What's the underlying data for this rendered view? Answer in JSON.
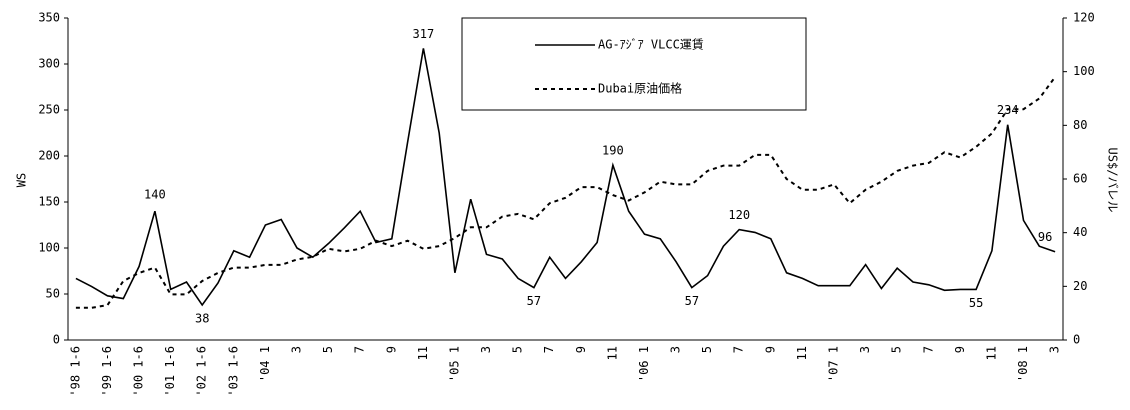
{
  "chart_data": {
    "type": "line",
    "categories": [
      "'98 1-6",
      null,
      "'99 1-6",
      null,
      "'00 1-6",
      null,
      "'01 1-6",
      null,
      "'02 1-6",
      null,
      "'03 1-6",
      null,
      "'04 1",
      null,
      "3",
      null,
      "5",
      null,
      "7",
      null,
      "9",
      null,
      "11",
      null,
      "'05 1",
      null,
      "3",
      null,
      "5",
      null,
      "7",
      null,
      "9",
      null,
      "11",
      null,
      "'06 1",
      null,
      "3",
      null,
      "5",
      null,
      "7",
      null,
      "9",
      null,
      "11",
      null,
      "'07 1",
      null,
      "3",
      null,
      "5",
      null,
      "7",
      null,
      "9",
      null,
      "11",
      null,
      "'08 1",
      null,
      "3"
    ],
    "series": [
      {
        "name": "AG-ｱｼﾞｱ VLCC運賃",
        "color": "#000000",
        "style": "solid",
        "values": [
          67,
          58,
          48,
          45,
          80,
          140,
          55,
          63,
          38,
          62,
          97,
          90,
          125,
          131,
          100,
          90,
          105,
          122,
          140,
          106,
          110,
          215,
          317,
          225,
          73,
          153,
          93,
          88,
          67,
          57,
          90,
          67,
          85,
          106,
          190,
          140,
          115,
          110,
          85,
          57,
          70,
          102,
          120,
          117,
          110,
          73,
          67,
          59,
          59,
          59,
          82,
          56,
          78,
          63,
          60,
          54,
          55,
          55,
          97,
          234,
          130,
          102,
          96
        ]
      },
      {
        "name": "Dubai原油価格",
        "color": "#000000",
        "style": "dashed",
        "axis": "y2",
        "values": [
          12,
          12,
          13,
          22,
          25,
          27,
          17,
          17,
          22,
          25,
          27,
          27,
          28,
          28,
          30,
          31,
          34,
          33,
          34,
          37,
          35,
          37,
          34,
          35,
          38,
          42,
          42,
          46,
          47,
          45,
          51,
          53,
          57,
          57,
          54,
          52,
          55,
          59,
          58,
          58,
          63,
          65,
          65,
          69,
          69,
          60,
          56,
          56,
          58,
          51,
          56,
          59,
          63,
          65,
          66,
          70,
          68,
          72,
          77,
          86,
          86,
          90,
          98
        ]
      }
    ],
    "ylabel": "WS",
    "y2label": "US$/バレル",
    "ylim": [
      0,
      350
    ],
    "yticks": [
      0,
      50,
      100,
      150,
      200,
      250,
      300,
      350
    ],
    "y2lim": [
      0,
      120
    ],
    "y2ticks": [
      0,
      20,
      40,
      60,
      80,
      100,
      120
    ],
    "grid": false,
    "legend": "top-center"
  }
}
